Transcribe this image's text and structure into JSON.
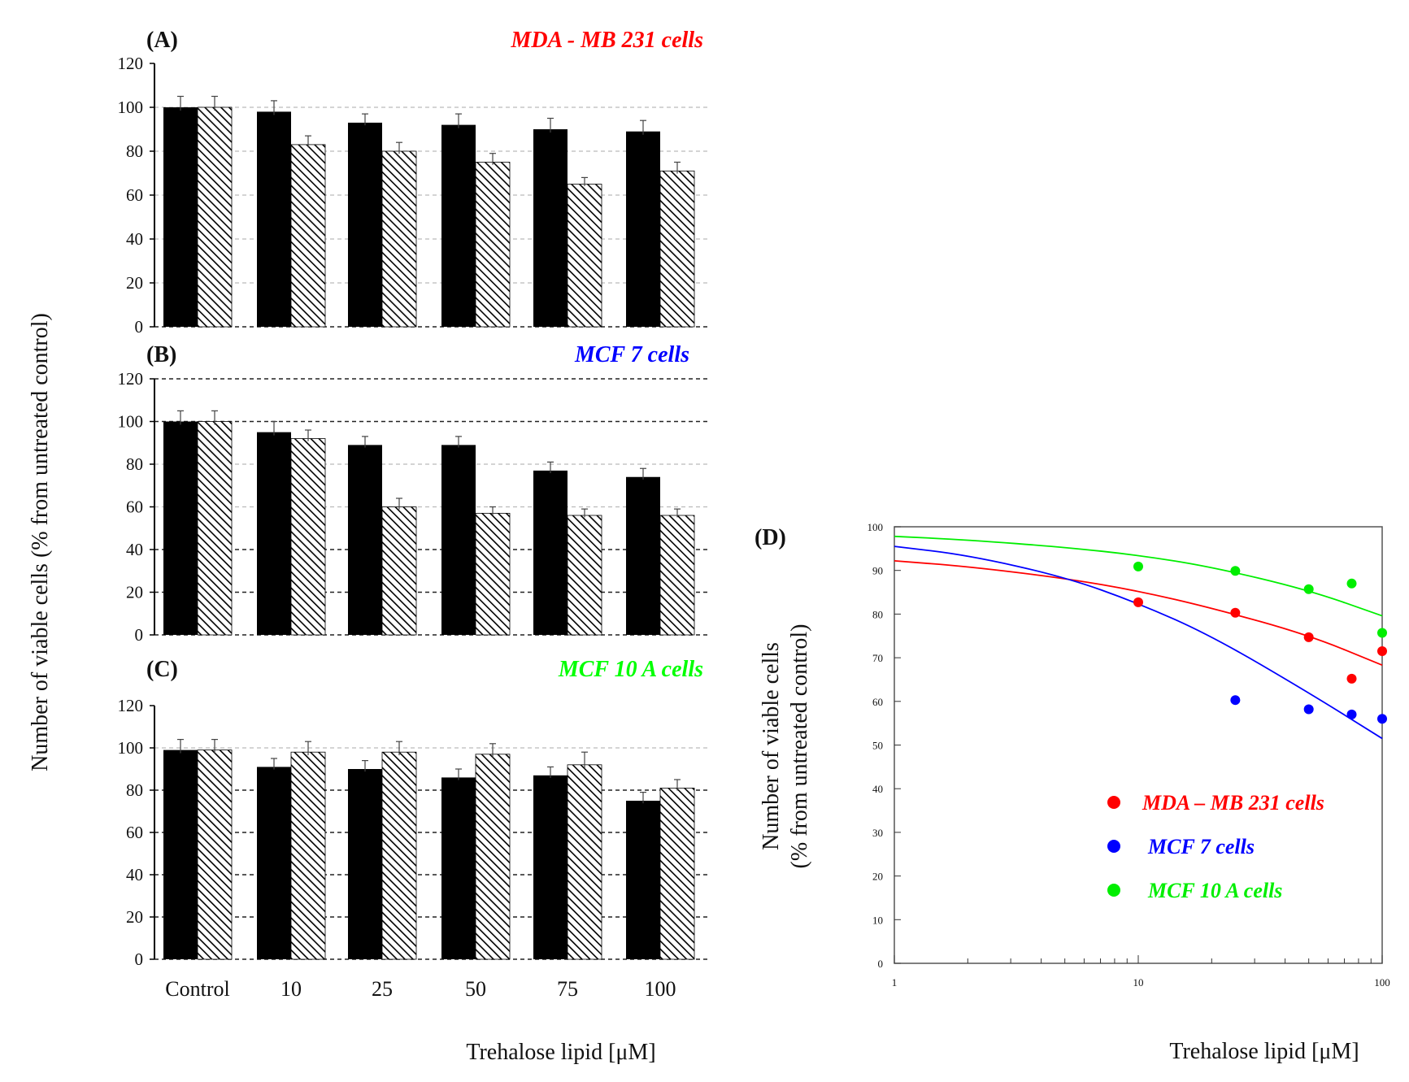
{
  "chart_data": [
    {
      "type": "bar",
      "panel_label": "(A)",
      "title": "MDA - MB 231 cells",
      "title_color": "#ff0000",
      "categories": [
        "Control",
        "10",
        "25",
        "50",
        "75",
        "100"
      ],
      "yticks": [
        "0",
        "20",
        "40",
        "60",
        "80",
        "100",
        "120"
      ],
      "ylim": [
        0,
        120
      ],
      "series": [
        {
          "name": "solid",
          "values": [
            100,
            98,
            93,
            92,
            90,
            89
          ],
          "errors": [
            5,
            5,
            4,
            5,
            5,
            5
          ]
        },
        {
          "name": "hatched",
          "values": [
            100,
            83,
            80,
            75,
            65,
            71
          ],
          "errors": [
            5,
            4,
            4,
            4,
            3,
            4
          ]
        }
      ]
    },
    {
      "type": "bar",
      "panel_label": "(B)",
      "title": "MCF 7 cells",
      "title_color": "#0000ff",
      "categories": [
        "Control",
        "10",
        "25",
        "50",
        "75",
        "100"
      ],
      "yticks": [
        "0",
        "20",
        "40",
        "60",
        "80",
        "100",
        "120"
      ],
      "ylim": [
        0,
        120
      ],
      "series": [
        {
          "name": "solid",
          "values": [
            100,
            95,
            89,
            89,
            77,
            74
          ],
          "errors": [
            5,
            5,
            4,
            4,
            4,
            4
          ]
        },
        {
          "name": "hatched",
          "values": [
            100,
            92,
            60,
            57,
            56,
            56
          ],
          "errors": [
            5,
            4,
            4,
            3,
            3,
            3
          ]
        }
      ]
    },
    {
      "type": "bar",
      "panel_label": "(C)",
      "title": "MCF 10 A cells",
      "title_color": "#00ff00",
      "categories": [
        "Control",
        "10",
        "25",
        "50",
        "75",
        "100"
      ],
      "yticks": [
        "0",
        "20",
        "40",
        "60",
        "80",
        "100",
        "120"
      ],
      "ylim": [
        0,
        120
      ],
      "xlabel": "Trehalose lipid [μM]",
      "series": [
        {
          "name": "solid",
          "values": [
            99,
            91,
            90,
            86,
            87,
            75
          ],
          "errors": [
            5,
            4,
            4,
            4,
            4,
            4
          ]
        },
        {
          "name": "hatched",
          "values": [
            99,
            98,
            98,
            97,
            92,
            81
          ],
          "errors": [
            5,
            5,
            5,
            5,
            6,
            4
          ]
        }
      ]
    },
    {
      "type": "scatter",
      "panel_label": "(D)",
      "xscale": "log",
      "xlim": [
        1,
        100
      ],
      "ylim": [
        0,
        100
      ],
      "xticks": [
        "1",
        "10",
        "100"
      ],
      "yticks": [
        "0",
        "10",
        "20",
        "30",
        "40",
        "50",
        "60",
        "70",
        "80",
        "90",
        "100"
      ],
      "xlabel": "Trehalose lipid [μM]",
      "series": [
        {
          "name": "MDA – MB 231 cells",
          "color": "#ff0000",
          "x": [
            10,
            25,
            50,
            75,
            100
          ],
          "y": [
            82.7,
            80.3,
            74.7,
            65.2,
            71.5
          ],
          "curve_x": [
            1,
            2,
            5,
            10,
            20,
            50,
            100
          ],
          "curve_y": [
            92.2,
            90.9,
            88.2,
            85.3,
            81.4,
            75.2,
            68.3
          ]
        },
        {
          "name": "MCF 7 cells",
          "color": "#0000ff",
          "x": [
            25,
            50,
            75,
            100
          ],
          "y": [
            60.3,
            58.2,
            57,
            56
          ],
          "curve_x": [
            1,
            2,
            5,
            10,
            20,
            50,
            100
          ],
          "curve_y": [
            95.5,
            93.5,
            88.5,
            82.5,
            75,
            62,
            51.5
          ]
        },
        {
          "name": "MCF 10 A cells",
          "color": "#00ee00",
          "x": [
            10,
            25,
            50,
            75,
            100
          ],
          "y": [
            90.9,
            89.9,
            85.7,
            87,
            75.7
          ],
          "curve_x": [
            1,
            2,
            5,
            10,
            20,
            50,
            100
          ],
          "curve_y": [
            97.8,
            97,
            95.3,
            93.5,
            90.8,
            85.5,
            79.6
          ]
        }
      ]
    }
  ],
  "shared_ylabel": "Number of viable cells (% from untreated control)",
  "panel_d_ylabel_line1": "Number of viable cells",
  "panel_d_ylabel_line2": "(% from untreated control)"
}
